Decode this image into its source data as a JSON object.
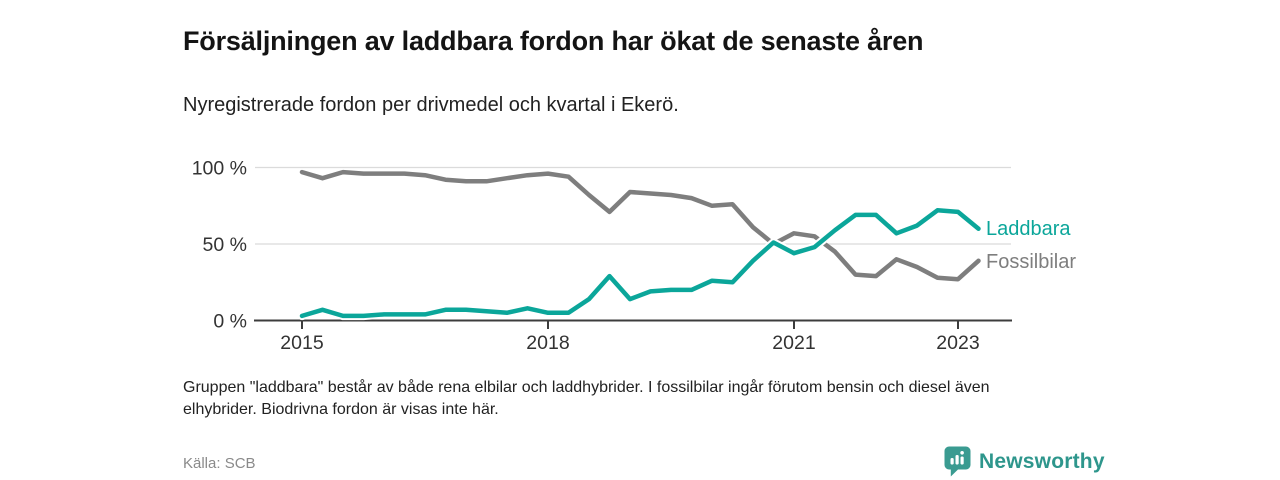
{
  "page": {
    "title": "Försäljningen av laddbara fordon har ökat de senaste åren",
    "subtitle": "Nyregistrerade fordon per drivmedel och kvartal i Ekerö.",
    "footnote": "Gruppen \"laddbara\" består av både rena elbilar och laddhybrider. I fossilbilar ingår förutom bensin och diesel även elhybrider. Biodrivna fordon är visas inte här.",
    "source": "Källa: SCB",
    "brand": {
      "name": "Newsworthy",
      "icon": "bar-chart-speech-bubble-icon",
      "color": "#2e968c",
      "icon_color": "#3a9b91"
    }
  },
  "chart_data": {
    "type": "line",
    "title": "Försäljningen av laddbara fordon har ökat de senaste åren",
    "subtitle": "Nyregistrerade fordon per drivmedel och kvartal i Ekerö.",
    "xlabel": "",
    "ylabel": "",
    "y_unit": "%",
    "ylim": [
      0,
      100
    ],
    "grid": "horizontal-at-50-and-100",
    "legend_position": "right-end-of-lines",
    "y_tick_labels": [
      "100 %",
      "50 %",
      "0 %"
    ],
    "y_tick_values": [
      100,
      50,
      0
    ],
    "x_tick_labels": [
      "2015",
      "2018",
      "2021",
      "2023"
    ],
    "x_tick_indices": [
      0,
      12,
      24,
      32
    ],
    "categories": [
      "2015 K1",
      "2015 K2",
      "2015 K3",
      "2015 K4",
      "2016 K1",
      "2016 K2",
      "2016 K3",
      "2016 K4",
      "2017 K1",
      "2017 K2",
      "2017 K3",
      "2017 K4",
      "2018 K1",
      "2018 K2",
      "2018 K3",
      "2018 K4",
      "2019 K1",
      "2019 K2",
      "2019 K3",
      "2019 K4",
      "2020 K1",
      "2020 K2",
      "2020 K3",
      "2020 K4",
      "2021 K1",
      "2021 K2",
      "2021 K3",
      "2021 K4",
      "2022 K1",
      "2022 K2",
      "2022 K3",
      "2022 K4",
      "2023 K1",
      "2023 K2"
    ],
    "series": [
      {
        "name": "Laddbara",
        "color": "#0ba69a",
        "values": [
          3,
          7,
          3,
          3,
          4,
          4,
          4,
          7,
          7,
          6,
          5,
          8,
          5,
          5,
          14,
          29,
          14,
          19,
          20,
          20,
          26,
          25,
          39,
          51,
          44,
          48,
          59,
          69,
          69,
          57,
          62,
          72,
          71,
          60
        ]
      },
      {
        "name": "Fossilbilar",
        "color": "#7e7e7e",
        "values": [
          97,
          93,
          97,
          96,
          96,
          96,
          95,
          92,
          91,
          91,
          93,
          95,
          96,
          94,
          82,
          71,
          84,
          83,
          82,
          80,
          75,
          76,
          61,
          50,
          57,
          55,
          45,
          30,
          29,
          40,
          35,
          28,
          27,
          39
        ]
      }
    ]
  }
}
